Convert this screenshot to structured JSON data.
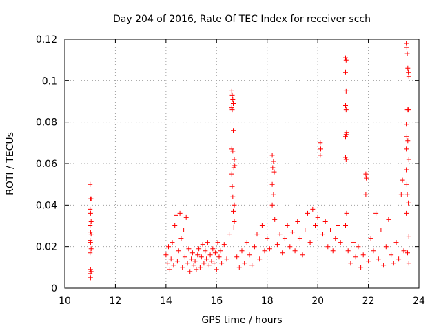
{
  "chart_data": {
    "type": "scatter",
    "title": "Day 204 of 2016, Rate Of TEC Index for receiver scch",
    "xlabel": "GPS time / hours",
    "ylabel": "ROTI / TECUs",
    "xlim": [
      10,
      24
    ],
    "ylim": [
      0,
      0.12
    ],
    "xticks": [
      10,
      12,
      14,
      16,
      18,
      20,
      22,
      24
    ],
    "yticks": [
      0,
      0.02,
      0.04,
      0.06,
      0.08,
      0.1,
      0.12
    ],
    "xtick_labels": [
      "10",
      "12",
      "14",
      "16",
      "18",
      "20",
      "22",
      "24"
    ],
    "ytick_labels": [
      "0",
      "0.02",
      "0.04",
      "0.06",
      "0.08",
      "0.1",
      "0.12"
    ],
    "grid": true,
    "marker": "+",
    "series": [
      {
        "name": "ROTI",
        "color": "#ff0000",
        "points": [
          [
            11.0,
            0.05
          ],
          [
            11.02,
            0.043
          ],
          [
            11.04,
            0.043
          ],
          [
            11.0,
            0.038
          ],
          [
            11.02,
            0.036
          ],
          [
            11.04,
            0.032
          ],
          [
            11.0,
            0.03
          ],
          [
            11.02,
            0.027
          ],
          [
            11.04,
            0.026
          ],
          [
            11.0,
            0.023
          ],
          [
            11.02,
            0.022
          ],
          [
            11.04,
            0.019
          ],
          [
            11.0,
            0.017
          ],
          [
            11.02,
            0.009
          ],
          [
            11.04,
            0.008
          ],
          [
            11.0,
            0.007
          ],
          [
            11.02,
            0.005
          ],
          [
            14.0,
            0.016
          ],
          [
            14.05,
            0.012
          ],
          [
            14.1,
            0.02
          ],
          [
            14.15,
            0.009
          ],
          [
            14.2,
            0.014
          ],
          [
            14.25,
            0.022
          ],
          [
            14.3,
            0.011
          ],
          [
            14.35,
            0.03
          ],
          [
            14.4,
            0.035
          ],
          [
            14.45,
            0.013
          ],
          [
            14.5,
            0.018
          ],
          [
            14.55,
            0.036
          ],
          [
            14.6,
            0.024
          ],
          [
            14.65,
            0.01
          ],
          [
            14.7,
            0.028
          ],
          [
            14.75,
            0.015
          ],
          [
            14.8,
            0.034
          ],
          [
            14.85,
            0.012
          ],
          [
            14.9,
            0.019
          ],
          [
            14.95,
            0.008
          ],
          [
            15.0,
            0.014
          ],
          [
            15.05,
            0.017
          ],
          [
            15.1,
            0.011
          ],
          [
            15.15,
            0.013
          ],
          [
            15.2,
            0.009
          ],
          [
            15.25,
            0.016
          ],
          [
            15.3,
            0.019
          ],
          [
            15.35,
            0.01
          ],
          [
            15.4,
            0.015
          ],
          [
            15.45,
            0.021
          ],
          [
            15.5,
            0.012
          ],
          [
            15.55,
            0.018
          ],
          [
            15.6,
            0.014
          ],
          [
            15.65,
            0.022
          ],
          [
            15.7,
            0.011
          ],
          [
            15.75,
            0.016
          ],
          [
            15.8,
            0.013
          ],
          [
            15.85,
            0.019
          ],
          [
            15.9,
            0.012
          ],
          [
            15.95,
            0.017
          ],
          [
            16.0,
            0.009
          ],
          [
            16.05,
            0.022
          ],
          [
            16.1,
            0.015
          ],
          [
            16.15,
            0.018
          ],
          [
            16.2,
            0.012
          ],
          [
            16.3,
            0.021
          ],
          [
            16.4,
            0.014
          ],
          [
            16.5,
            0.026
          ],
          [
            16.6,
            0.095
          ],
          [
            16.62,
            0.093
          ],
          [
            16.64,
            0.091
          ],
          [
            16.66,
            0.089
          ],
          [
            16.6,
            0.087
          ],
          [
            16.62,
            0.086
          ],
          [
            16.66,
            0.076
          ],
          [
            16.6,
            0.067
          ],
          [
            16.64,
            0.066
          ],
          [
            16.7,
            0.062
          ],
          [
            16.72,
            0.059
          ],
          [
            16.68,
            0.058
          ],
          [
            16.6,
            0.055
          ],
          [
            16.62,
            0.049
          ],
          [
            16.64,
            0.044
          ],
          [
            16.7,
            0.04
          ],
          [
            16.66,
            0.037
          ],
          [
            16.7,
            0.032
          ],
          [
            16.68,
            0.029
          ],
          [
            16.8,
            0.015
          ],
          [
            16.9,
            0.01
          ],
          [
            17.0,
            0.018
          ],
          [
            17.1,
            0.012
          ],
          [
            17.2,
            0.022
          ],
          [
            17.3,
            0.016
          ],
          [
            17.4,
            0.011
          ],
          [
            17.5,
            0.02
          ],
          [
            17.6,
            0.026
          ],
          [
            17.7,
            0.014
          ],
          [
            17.8,
            0.03
          ],
          [
            17.9,
            0.018
          ],
          [
            18.0,
            0.024
          ],
          [
            18.1,
            0.019
          ],
          [
            18.2,
            0.064
          ],
          [
            18.25,
            0.061
          ],
          [
            18.22,
            0.058
          ],
          [
            18.28,
            0.056
          ],
          [
            18.2,
            0.05
          ],
          [
            18.25,
            0.045
          ],
          [
            18.2,
            0.04
          ],
          [
            18.3,
            0.033
          ],
          [
            18.4,
            0.021
          ],
          [
            18.5,
            0.026
          ],
          [
            18.6,
            0.017
          ],
          [
            18.7,
            0.024
          ],
          [
            18.8,
            0.03
          ],
          [
            18.9,
            0.02
          ],
          [
            19.0,
            0.027
          ],
          [
            19.1,
            0.018
          ],
          [
            19.2,
            0.032
          ],
          [
            19.3,
            0.024
          ],
          [
            19.4,
            0.016
          ],
          [
            19.5,
            0.028
          ],
          [
            19.6,
            0.036
          ],
          [
            19.7,
            0.022
          ],
          [
            19.8,
            0.038
          ],
          [
            19.9,
            0.03
          ],
          [
            20.0,
            0.034
          ],
          [
            20.1,
            0.07
          ],
          [
            20.12,
            0.067
          ],
          [
            20.1,
            0.064
          ],
          [
            20.2,
            0.026
          ],
          [
            20.3,
            0.032
          ],
          [
            20.4,
            0.02
          ],
          [
            20.5,
            0.028
          ],
          [
            20.6,
            0.018
          ],
          [
            20.7,
            0.024
          ],
          [
            20.8,
            0.03
          ],
          [
            20.9,
            0.022
          ],
          [
            21.1,
            0.111
          ],
          [
            21.12,
            0.11
          ],
          [
            21.1,
            0.104
          ],
          [
            21.12,
            0.095
          ],
          [
            21.1,
            0.088
          ],
          [
            21.12,
            0.086
          ],
          [
            21.14,
            0.075
          ],
          [
            21.12,
            0.074
          ],
          [
            21.1,
            0.073
          ],
          [
            21.1,
            0.063
          ],
          [
            21.12,
            0.062
          ],
          [
            21.14,
            0.036
          ],
          [
            21.1,
            0.03
          ],
          [
            21.2,
            0.018
          ],
          [
            21.3,
            0.012
          ],
          [
            21.4,
            0.022
          ],
          [
            21.5,
            0.015
          ],
          [
            21.6,
            0.02
          ],
          [
            21.7,
            0.01
          ],
          [
            21.8,
            0.016
          ],
          [
            21.9,
            0.055
          ],
          [
            21.92,
            0.053
          ],
          [
            21.9,
            0.045
          ],
          [
            22.0,
            0.013
          ],
          [
            22.1,
            0.024
          ],
          [
            22.2,
            0.018
          ],
          [
            22.3,
            0.036
          ],
          [
            22.4,
            0.014
          ],
          [
            22.5,
            0.028
          ],
          [
            22.6,
            0.011
          ],
          [
            22.7,
            0.02
          ],
          [
            22.8,
            0.033
          ],
          [
            22.9,
            0.016
          ],
          [
            23.0,
            0.012
          ],
          [
            23.1,
            0.022
          ],
          [
            23.2,
            0.014
          ],
          [
            23.3,
            0.045
          ],
          [
            23.35,
            0.052
          ],
          [
            23.4,
            0.018
          ],
          [
            23.5,
            0.118
          ],
          [
            23.52,
            0.116
          ],
          [
            23.54,
            0.113
          ],
          [
            23.56,
            0.106
          ],
          [
            23.58,
            0.104
          ],
          [
            23.6,
            0.102
          ],
          [
            23.54,
            0.086
          ],
          [
            23.58,
            0.086
          ],
          [
            23.5,
            0.079
          ],
          [
            23.52,
            0.073
          ],
          [
            23.56,
            0.071
          ],
          [
            23.5,
            0.067
          ],
          [
            23.6,
            0.062
          ],
          [
            23.5,
            0.057
          ],
          [
            23.52,
            0.05
          ],
          [
            23.54,
            0.045
          ],
          [
            23.58,
            0.041
          ],
          [
            23.5,
            0.036
          ],
          [
            23.6,
            0.025
          ],
          [
            23.55,
            0.017
          ],
          [
            23.6,
            0.012
          ]
        ]
      }
    ]
  }
}
